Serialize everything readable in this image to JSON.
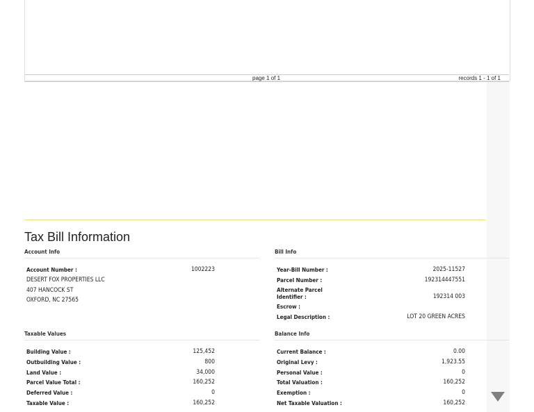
{
  "grid": {
    "pager": "page 1 of 1",
    "records": "records 1 - 1 of 1"
  },
  "scroll": {
    "up_icon": "triangle-up",
    "down_icon": "triangle-down"
  },
  "title": "Tax Bill Information",
  "account_info": {
    "header": "Account Info",
    "account_number_label": "Account Number :",
    "account_number": "1002223",
    "owner": "DESERT FOX PROPERTIES LLC",
    "address1": "407 HANCOCK ST",
    "address2": "OXFORD, NC 27565"
  },
  "bill_info": {
    "header": "Bill Info",
    "rows": [
      {
        "label": "Year-Bill Number :",
        "value": "2025-11527"
      },
      {
        "label": "Parcel Number :",
        "value": "192314447551"
      },
      {
        "label": "Alternate Parcel Identifier :",
        "value": "192314 003"
      },
      {
        "label": "Escrow :",
        "value": ""
      },
      {
        "label": "Legal Description :",
        "value": "LOT 20 GREEN ACRES"
      }
    ]
  },
  "taxable_values": {
    "header": "Taxable Values",
    "rows": [
      {
        "label": "Building Value :",
        "value": "125,452"
      },
      {
        "label": "Outbuilding Value :",
        "value": "800"
      },
      {
        "label": "Land Value :",
        "value": "34,000"
      },
      {
        "label": "Parcel Value Total :",
        "value": "160,252"
      },
      {
        "label": "Deferred Value :",
        "value": "0"
      },
      {
        "label": "Taxable Value :",
        "value": "160,252"
      }
    ]
  },
  "balance_info": {
    "header": "Balance Info",
    "rows": [
      {
        "label": "Current Balance :",
        "value": "0.00"
      },
      {
        "label": "Original Levy :",
        "value": "1,923.55"
      },
      {
        "label": "Personal Value :",
        "value": "0"
      },
      {
        "label": "Total Valuation :",
        "value": "160,252"
      },
      {
        "label": "Exemption :",
        "value": "0"
      },
      {
        "label": "Net Taxable Valuation :",
        "value": "160,252"
      }
    ]
  }
}
